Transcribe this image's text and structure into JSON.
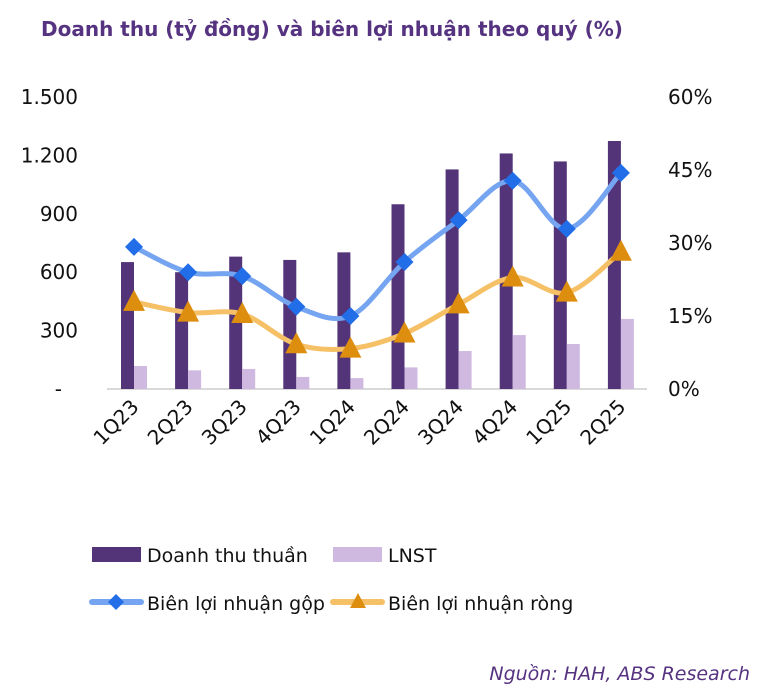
{
  "chart_data": {
    "type": "bar+line",
    "title": "Doanh thu (tỷ đồng) và biên lợi nhuận theo quý (%)",
    "categories": [
      "1Q23",
      "2Q23",
      "3Q23",
      "4Q23",
      "1Q24",
      "2Q24",
      "3Q24",
      "4Q24",
      "1Q25",
      "2Q25"
    ],
    "left_axis": {
      "ylim": [
        0,
        1500
      ],
      "ticks": [
        0,
        300,
        600,
        900,
        1200,
        1500
      ],
      "tick_labels": [
        "-",
        "300",
        "600",
        "900",
        "1.200",
        "1.500"
      ]
    },
    "right_axis": {
      "ylim": [
        0,
        60
      ],
      "ticks": [
        0,
        15,
        30,
        45,
        60
      ],
      "tick_labels": [
        "0%",
        "15%",
        "30%",
        "45%",
        "60%"
      ]
    },
    "series": [
      {
        "name": "Doanh thu thuần",
        "type": "bar",
        "axis": "left",
        "color": "#533479",
        "values": [
          652,
          600,
          680,
          663,
          702,
          949,
          1128,
          1210,
          1169,
          1274
        ]
      },
      {
        "name": "LNST",
        "type": "bar",
        "axis": "left",
        "color": "#cfb9e0",
        "values": [
          118,
          96,
          103,
          62,
          56,
          111,
          195,
          277,
          231,
          360
        ]
      },
      {
        "name": "Biên lợi nhuận gộp",
        "type": "line",
        "axis": "right",
        "color": "#75a4f0",
        "marker": "diamond",
        "marker_color": "#226de8",
        "values": [
          29.2,
          24.0,
          23.2,
          16.9,
          15.0,
          26.1,
          34.7,
          42.8,
          32.9,
          44.4
        ]
      },
      {
        "name": "Biên lợi nhuận ròng",
        "type": "line",
        "axis": "right",
        "color": "#f5c066",
        "marker": "triangle",
        "marker_color": "#dd8e0e",
        "values": [
          17.9,
          15.7,
          15.4,
          9.2,
          8.3,
          11.4,
          17.4,
          22.9,
          19.8,
          28.2
        ]
      }
    ],
    "grid": false,
    "legend": "bottom",
    "title_color": "#553380"
  },
  "source": "Nguồn: HAH, ABS Research"
}
